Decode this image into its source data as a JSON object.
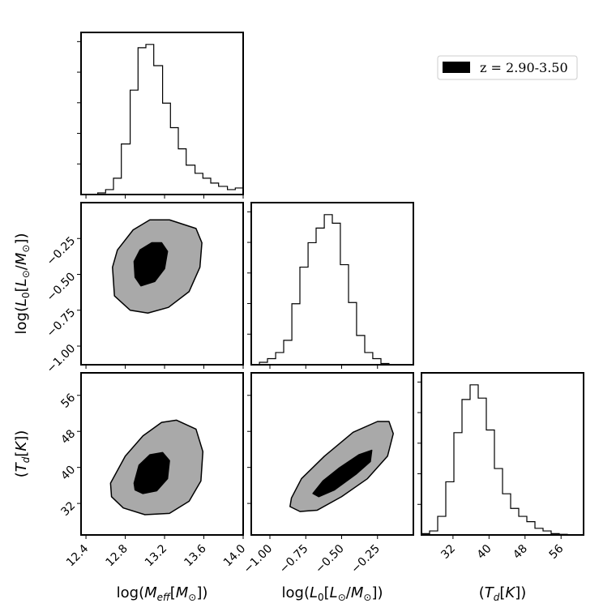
{
  "chart_data": {
    "type": "corner",
    "parameters": [
      {
        "key": "mass",
        "label": "log(M_eff[M_⊙])",
        "range": [
          12.35,
          14.0
        ],
        "ticks": [
          "12.4",
          "12.8",
          "13.2",
          "13.6",
          "14.0"
        ]
      },
      {
        "key": "lum",
        "label": "log(L_0[L_⊙/M_⊙])",
        "range": [
          -1.13,
          0.0
        ],
        "ticks": [
          "−1.00",
          "−0.75",
          "−0.50",
          "−0.25"
        ]
      },
      {
        "key": "temp",
        "label": "(T_d[K])",
        "range": [
          25,
          61
        ],
        "ticks": [
          "32",
          "40",
          "48",
          "56"
        ]
      }
    ],
    "legend": {
      "label": "z = 2.90-3.50",
      "color": "#000000",
      "placement": "top-right"
    },
    "histograms": [
      {
        "param": "mass",
        "bin_edges": [
          12.35,
          12.43,
          12.52,
          12.6,
          12.68,
          12.76,
          12.85,
          12.93,
          13.01,
          13.09,
          13.18,
          13.26,
          13.34,
          13.42,
          13.51,
          13.59,
          13.67,
          13.75,
          13.84,
          13.92,
          14.0
        ],
        "counts": [
          0,
          0,
          0.01,
          0.03,
          0.1,
          0.31,
          0.64,
          0.9,
          0.92,
          0.79,
          0.56,
          0.41,
          0.28,
          0.18,
          0.13,
          0.1,
          0.07,
          0.05,
          0.03,
          0.04
        ]
      },
      {
        "param": "lum",
        "bin_edges": [
          -1.13,
          -1.073,
          -1.017,
          -0.96,
          -0.904,
          -0.847,
          -0.791,
          -0.734,
          -0.678,
          -0.621,
          -0.565,
          -0.509,
          -0.452,
          -0.396,
          -0.339,
          -0.283,
          -0.226,
          -0.17,
          -0.113,
          -0.057,
          0.0
        ],
        "counts": [
          0,
          0.02,
          0.05,
          0.1,
          0.2,
          0.5,
          0.8,
          1.0,
          1.12,
          1.23,
          1.16,
          0.82,
          0.51,
          0.24,
          0.1,
          0.05,
          0.01,
          0,
          0,
          0
        ]
      },
      {
        "param": "temp",
        "bin_edges": [
          25,
          26.8,
          28.6,
          30.4,
          32.2,
          34,
          35.8,
          37.6,
          39.4,
          41.2,
          43,
          44.8,
          46.6,
          48.4,
          50.2,
          52,
          53.8,
          55.6,
          57.4,
          59.2,
          61
        ],
        "counts": [
          0.01,
          0.03,
          0.14,
          0.4,
          0.77,
          1.02,
          1.13,
          1.03,
          0.79,
          0.5,
          0.31,
          0.2,
          0.14,
          0.1,
          0.05,
          0.03,
          0.01,
          0.005,
          0,
          0
        ]
      }
    ],
    "contour_levels": [
      "inner",
      "outer"
    ],
    "contour_colors": {
      "inner": "#000000",
      "outer": "#a9a9a9"
    },
    "contours": [
      {
        "x": "mass",
        "y": "lum",
        "outer": [
          [
            12.67,
            -0.45
          ],
          [
            12.72,
            -0.33
          ],
          [
            12.88,
            -0.19
          ],
          [
            13.05,
            -0.12
          ],
          [
            13.25,
            -0.12
          ],
          [
            13.52,
            -0.18
          ],
          [
            13.58,
            -0.28
          ],
          [
            13.56,
            -0.45
          ],
          [
            13.45,
            -0.62
          ],
          [
            13.24,
            -0.73
          ],
          [
            13.03,
            -0.77
          ],
          [
            12.85,
            -0.75
          ],
          [
            12.69,
            -0.65
          ]
        ],
        "inner": [
          [
            12.89,
            -0.41
          ],
          [
            12.95,
            -0.33
          ],
          [
            13.07,
            -0.28
          ],
          [
            13.17,
            -0.28
          ],
          [
            13.23,
            -0.34
          ],
          [
            13.2,
            -0.46
          ],
          [
            13.1,
            -0.55
          ],
          [
            12.96,
            -0.58
          ],
          [
            12.9,
            -0.52
          ]
        ]
      },
      {
        "x": "mass",
        "y": "temp",
        "outer": [
          [
            12.65,
            36.5
          ],
          [
            12.8,
            42.5
          ],
          [
            12.98,
            47
          ],
          [
            13.17,
            50
          ],
          [
            13.32,
            50.5
          ],
          [
            13.52,
            48.5
          ],
          [
            13.59,
            43.5
          ],
          [
            13.57,
            37
          ],
          [
            13.45,
            32.5
          ],
          [
            13.25,
            29.8
          ],
          [
            13.0,
            29.5
          ],
          [
            12.78,
            31
          ],
          [
            12.66,
            33.5
          ]
        ],
        "inner": [
          [
            12.89,
            36.5
          ],
          [
            12.94,
            40.5
          ],
          [
            13.05,
            42.8
          ],
          [
            13.18,
            43.3
          ],
          [
            13.25,
            41.5
          ],
          [
            13.23,
            37.5
          ],
          [
            13.12,
            34.8
          ],
          [
            12.98,
            34.2
          ],
          [
            12.9,
            35
          ]
        ]
      },
      {
        "x": "lum",
        "y": "temp",
        "outer": [
          [
            -0.85,
            33.2
          ],
          [
            -0.78,
            37.5
          ],
          [
            -0.62,
            42.5
          ],
          [
            -0.42,
            47.8
          ],
          [
            -0.25,
            50.2
          ],
          [
            -0.17,
            50.2
          ],
          [
            -0.14,
            47.5
          ],
          [
            -0.18,
            42.5
          ],
          [
            -0.32,
            37.5
          ],
          [
            -0.5,
            33.5
          ],
          [
            -0.67,
            30.5
          ],
          [
            -0.79,
            30.2
          ],
          [
            -0.86,
            31.3
          ]
        ],
        "inner": [
          [
            -0.7,
            34.2
          ],
          [
            -0.63,
            37
          ],
          [
            -0.52,
            39.8
          ],
          [
            -0.38,
            42.8
          ],
          [
            -0.29,
            43.8
          ],
          [
            -0.3,
            41.3
          ],
          [
            -0.4,
            38.5
          ],
          [
            -0.55,
            35
          ],
          [
            -0.66,
            33.5
          ]
        ]
      }
    ]
  }
}
